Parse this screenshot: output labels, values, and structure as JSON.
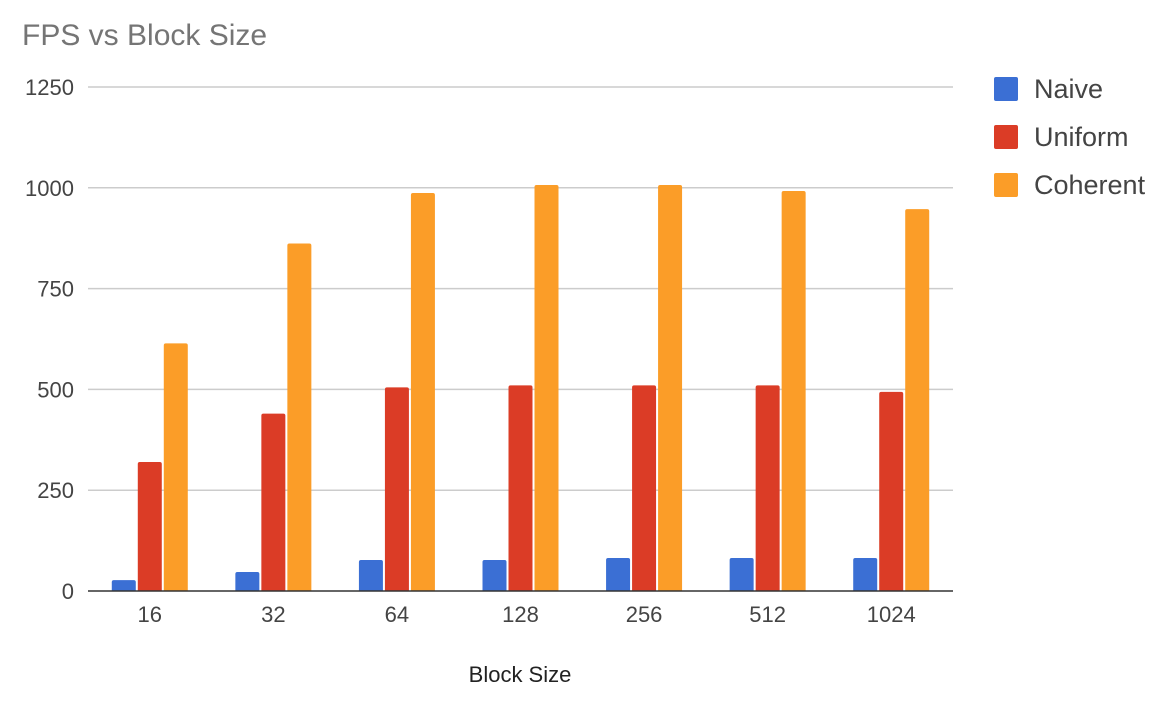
{
  "chart_data": {
    "type": "bar",
    "title": "FPS vs Block Size",
    "xlabel": "Block Size",
    "ylabel": "",
    "categories": [
      "16",
      "32",
      "64",
      "128",
      "256",
      "512",
      "1024"
    ],
    "series": [
      {
        "name": "Naive",
        "color": "#3b6fd4",
        "values": [
          27,
          47,
          77,
          77,
          82,
          82,
          82
        ]
      },
      {
        "name": "Uniform",
        "color": "#db3c26",
        "values": [
          320,
          440,
          505,
          510,
          510,
          510,
          494
        ]
      },
      {
        "name": "Coherent",
        "color": "#fb9d28",
        "values": [
          614,
          862,
          987,
          1007,
          1007,
          992,
          947
        ]
      }
    ],
    "ylim": [
      0,
      1250
    ],
    "yticks": [
      0,
      250,
      500,
      750,
      1000,
      1250
    ],
    "grid": true,
    "legend_position": "right"
  }
}
